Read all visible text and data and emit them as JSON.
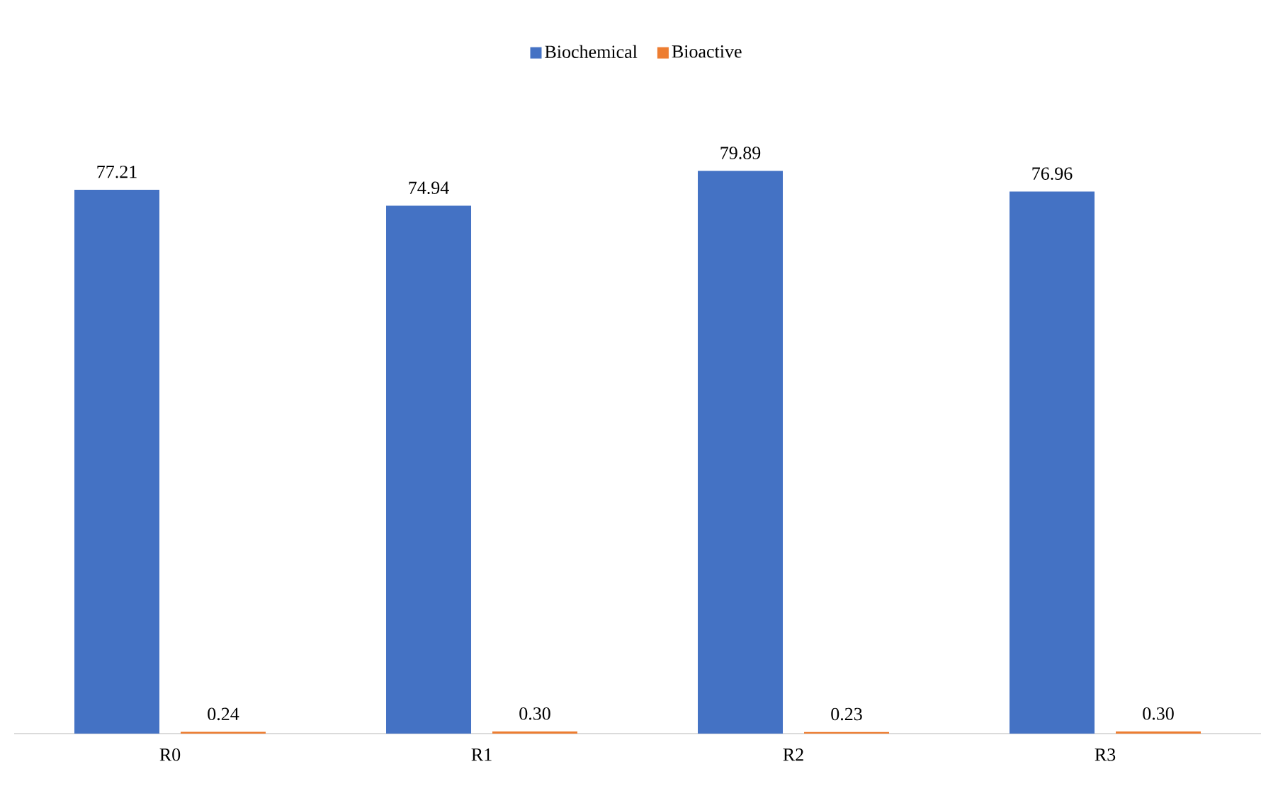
{
  "chart_data": {
    "type": "bar",
    "categories": [
      "R0",
      "R1",
      "R2",
      "R3"
    ],
    "series": [
      {
        "name": "Biochemical",
        "color": "#4472c4",
        "values": [
          77.21,
          74.94,
          79.89,
          76.96
        ],
        "value_labels": [
          "77.21",
          "74.94",
          "79.89",
          "76.96"
        ]
      },
      {
        "name": "Bioactive",
        "color": "#ed7d31",
        "values": [
          0.24,
          0.3,
          0.23,
          0.3
        ],
        "value_labels": [
          "0.24",
          "0.30",
          "0.23",
          "0.30"
        ]
      }
    ],
    "legend": "top"
  }
}
